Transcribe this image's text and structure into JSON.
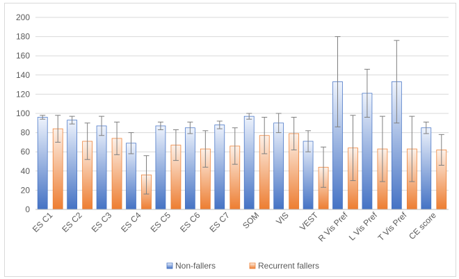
{
  "chart_data": {
    "type": "bar",
    "title": "",
    "xlabel": "",
    "ylabel": "",
    "ylim": [
      0,
      200
    ],
    "ytick_step": 20,
    "grid": true,
    "legend_position": "bottom",
    "categories": [
      "ES C1",
      "ES C2",
      "ES C3",
      "ES C4",
      "ES C5",
      "ES C6",
      "ES C7",
      "SOM",
      "VIS",
      "VEST",
      "R Vis Pref",
      "L Vis Pref",
      "T Vis Pref",
      "CE score"
    ],
    "series": [
      {
        "name": "Non-fallers",
        "color": "#4472C4",
        "values": [
          96,
          93,
          87,
          69,
          87,
          85,
          88,
          97,
          90,
          71,
          133,
          121,
          133,
          85
        ],
        "error": [
          2,
          4,
          10,
          11,
          4,
          6,
          4,
          3,
          10,
          11,
          47,
          25,
          43,
          6
        ]
      },
      {
        "name": "Recurrent fallers",
        "color": "#ED7D31",
        "values": [
          84,
          71,
          74,
          36,
          67,
          63,
          66,
          77,
          79,
          44,
          64,
          63,
          63,
          62
        ],
        "error": [
          14,
          19,
          17,
          20,
          16,
          19,
          19,
          19,
          17,
          21,
          34,
          34,
          34,
          16
        ]
      }
    ]
  }
}
